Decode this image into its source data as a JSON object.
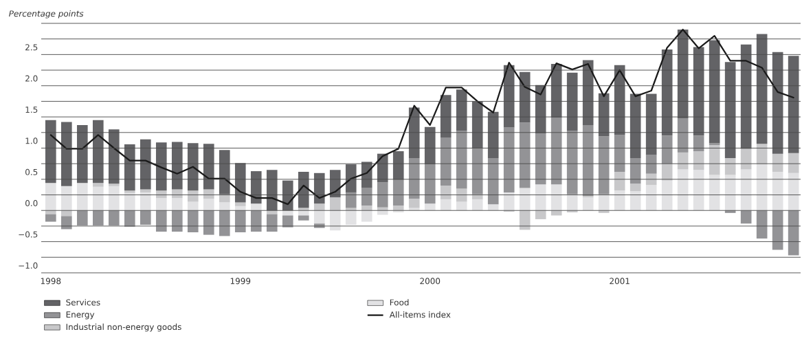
{
  "chart_data": {
    "type": "bar",
    "stacked": true,
    "ylabel": "Percentage points",
    "categories": [
      "1998",
      null,
      null,
      null,
      null,
      null,
      null,
      null,
      null,
      null,
      null,
      null,
      "1999",
      null,
      null,
      null,
      null,
      null,
      null,
      null,
      null,
      null,
      null,
      null,
      "2000",
      null,
      null,
      null,
      null,
      null,
      null,
      null,
      null,
      null,
      null,
      null,
      "2001",
      null,
      null,
      null,
      null,
      null,
      null,
      null,
      null,
      null,
      null,
      null
    ],
    "series": [
      {
        "name": "Food",
        "color": "#e2e2e4",
        "values": [
          0.44,
          0.39,
          0.44,
          0.38,
          0.39,
          0.28,
          0.29,
          0.2,
          0.2,
          0.14,
          0.19,
          0.13,
          0.07,
          0.11,
          0,
          -0.08,
          -0.08,
          -0.21,
          -0.32,
          -0.23,
          -0.18,
          -0.07,
          -0.03,
          0.04,
          0.11,
          0.18,
          0.14,
          0.18,
          0.1,
          0.29,
          0.36,
          0.42,
          0.42,
          0.26,
          0.21,
          0.26,
          0.32,
          0.31,
          0.41,
          0.48,
          0.66,
          0.65,
          0.57,
          0.57,
          0.66,
          0.74,
          0.62,
          0.6
        ]
      },
      {
        "name": "Industrial non-energy goods",
        "color": "#c8c8ca",
        "values": [
          -0.06,
          -0.09,
          0,
          0.06,
          0.04,
          0.04,
          0.05,
          0.12,
          0.14,
          0.18,
          0.15,
          0.13,
          0.06,
          0,
          -0.06,
          0,
          0.04,
          0.11,
          0.21,
          0.04,
          0.08,
          0.05,
          0.08,
          0.15,
          0,
          0.22,
          0.21,
          0.08,
          null,
          -0.02,
          -0.31,
          -0.14,
          -0.08,
          -0.03,
          0.02,
          -0.04,
          0.3,
          0.12,
          0.18,
          0.27,
          0.27,
          0.3,
          0.48,
          0.27,
          0.33,
          0.33,
          0.29,
          0.32
        ]
      },
      {
        "name": "Energy",
        "color": "#939396",
        "values": [
          -0.12,
          -0.21,
          -0.24,
          -0.24,
          -0.24,
          -0.26,
          -0.23,
          -0.34,
          -0.34,
          -0.35,
          -0.39,
          -0.41,
          -0.35,
          -0.34,
          -0.28,
          -0.19,
          -0.08,
          -0.07,
          0,
          0.25,
          0.28,
          0.4,
          0.41,
          0.65,
          0.63,
          0.77,
          0.93,
          0.73,
          0.74,
          1.04,
          1.05,
          0.81,
          1.07,
          1.02,
          1.14,
          0.93,
          0.59,
          0.41,
          0.3,
          0.45,
          0.55,
          0.25,
          0.03,
          -0.04,
          -0.21,
          -0.45,
          -0.63,
          -0.72
        ]
      },
      {
        "name": "Services",
        "color": "#636366",
        "values": [
          1.01,
          1.03,
          0.93,
          1.01,
          0.87,
          0.74,
          0.8,
          0.77,
          0.76,
          0.76,
          0.73,
          0.71,
          0.63,
          0.52,
          0.65,
          0.48,
          0.58,
          0.49,
          0.44,
          0.45,
          0.42,
          0.46,
          0.46,
          0.81,
          0.6,
          0.68,
          0.66,
          0.76,
          0.74,
          1.0,
          0.81,
          0.78,
          0.86,
          0.93,
          1.04,
          0.69,
          1.12,
          1.03,
          0.98,
          1.38,
          1.42,
          1.42,
          1.65,
          1.54,
          1.67,
          1.76,
          1.63,
          1.56
        ]
      },
      {
        "name": "All-items index",
        "type": "line",
        "color": "#1a1a1a",
        "values": [
          1.21,
          0.99,
          0.99,
          1.21,
          1.0,
          0.8,
          0.8,
          0.69,
          0.59,
          0.7,
          0.51,
          0.51,
          0.3,
          0.2,
          0.2,
          0.1,
          0.4,
          0.2,
          0.3,
          0.51,
          0.6,
          0.87,
          0.99,
          1.68,
          1.37,
          1.97,
          1.97,
          1.75,
          1.57,
          2.37,
          1.98,
          1.86,
          2.36,
          2.26,
          2.35,
          1.83,
          2.25,
          1.83,
          1.92,
          2.61,
          2.9,
          2.6,
          2.8,
          2.4,
          2.4,
          2.29,
          1.9,
          1.81
        ]
      }
    ],
    "ylim": [
      -1.0,
      3.0
    ],
    "yticks": [
      {
        "value": -1.0,
        "label": "−1.0"
      },
      {
        "value": -0.75,
        "label": null
      },
      {
        "value": -0.5,
        "label": "−0.5"
      },
      {
        "value": -0.25,
        "label": null
      },
      {
        "value": 0,
        "label": "0.0"
      },
      {
        "value": 0.25,
        "label": null
      },
      {
        "value": 0.5,
        "label": "0.5"
      },
      {
        "value": 0.75,
        "label": null
      },
      {
        "value": 1.0,
        "label": "1.0"
      },
      {
        "value": 1.25,
        "label": null
      },
      {
        "value": 1.5,
        "label": "1.5"
      },
      {
        "value": 1.75,
        "label": null
      },
      {
        "value": 2.0,
        "label": "2.0"
      },
      {
        "value": 2.25,
        "label": null
      },
      {
        "value": 2.5,
        "label": "2.5"
      },
      {
        "value": 2.75,
        "label": null
      },
      {
        "value": 3.0,
        "label": null
      }
    ],
    "grid": "y",
    "legend": "bottom",
    "marker": "none",
    "line_style": "solid"
  }
}
